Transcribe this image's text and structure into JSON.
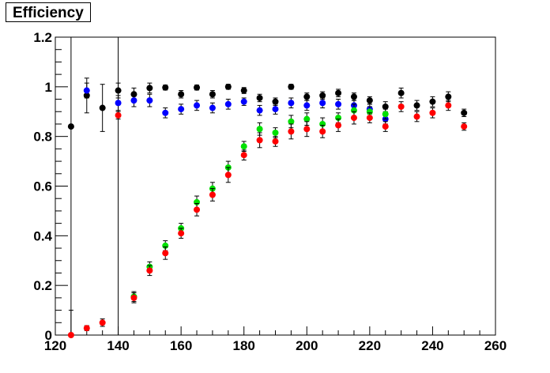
{
  "chart_data": {
    "type": "scatter",
    "title": "Efficiency",
    "xlabel": "",
    "ylabel": "",
    "xlim": [
      120,
      260
    ],
    "ylim": [
      0,
      1.2
    ],
    "xticks": [
      120,
      140,
      160,
      180,
      200,
      220,
      240,
      260
    ],
    "yticks": [
      0,
      0.2,
      0.4,
      0.6,
      0.8,
      1,
      1.2
    ],
    "xtick_labels": [
      "120",
      "140",
      "160",
      "180",
      "200",
      "220",
      "240",
      "260"
    ],
    "ytick_labels": [
      "0",
      "0.2",
      "0.4",
      "0.6",
      "0.8",
      "1",
      "1.2"
    ],
    "vlines": [
      125,
      140
    ],
    "grid": false,
    "series": [
      {
        "color": "#000000",
        "x": [
          125,
          130,
          135,
          140,
          145,
          150,
          155,
          160,
          165,
          170,
          175,
          180,
          185,
          190,
          195,
          200,
          205,
          210,
          215,
          220,
          225,
          230,
          235,
          240,
          245,
          250
        ],
        "y": [
          0.84,
          0.965,
          0.915,
          0.985,
          0.97,
          0.995,
          0.997,
          0.97,
          0.997,
          0.97,
          1.0,
          0.985,
          0.955,
          0.94,
          1.0,
          0.96,
          0.965,
          0.975,
          0.96,
          0.945,
          0.92,
          0.975,
          0.925,
          0.94,
          0.96,
          0.895
        ],
        "yerr": [
          0.0,
          0.07,
          0.095,
          0.03,
          0.025,
          0.02,
          0.01,
          0.015,
          0.01,
          0.015,
          0.01,
          0.012,
          0.015,
          0.015,
          0.01,
          0.015,
          0.015,
          0.015,
          0.015,
          0.015,
          0.02,
          0.02,
          0.02,
          0.02,
          0.02,
          0.015
        ]
      },
      {
        "color": "#0000ff",
        "x": [
          130,
          140,
          145,
          150,
          155,
          160,
          165,
          170,
          175,
          180,
          185,
          190,
          195,
          200,
          205,
          210,
          215,
          220,
          225
        ],
        "y": [
          0.985,
          0.935,
          0.945,
          0.945,
          0.895,
          0.91,
          0.925,
          0.915,
          0.93,
          0.94,
          0.905,
          0.91,
          0.935,
          0.925,
          0.935,
          0.93,
          0.925,
          0.91,
          0.87
        ],
        "yerr": [
          0.03,
          0.03,
          0.025,
          0.025,
          0.02,
          0.02,
          0.02,
          0.02,
          0.02,
          0.015,
          0.02,
          0.02,
          0.02,
          0.02,
          0.02,
          0.02,
          0.02,
          0.02,
          0.02
        ]
      },
      {
        "color": "#00e000",
        "x": [
          145,
          150,
          155,
          160,
          165,
          170,
          175,
          180,
          185,
          190,
          195,
          200,
          205,
          210,
          215,
          220,
          225
        ],
        "y": [
          0.155,
          0.275,
          0.36,
          0.43,
          0.535,
          0.59,
          0.675,
          0.76,
          0.83,
          0.815,
          0.86,
          0.87,
          0.85,
          0.875,
          0.905,
          0.9,
          0.89
        ],
        "yerr": [
          0.02,
          0.02,
          0.02,
          0.02,
          0.025,
          0.025,
          0.025,
          0.02,
          0.025,
          0.02,
          0.025,
          0.025,
          0.025,
          0.02,
          0.025,
          0.02,
          0.02
        ]
      },
      {
        "color": "#ff0000",
        "x": [
          125,
          130,
          135,
          140,
          145,
          150,
          155,
          160,
          165,
          170,
          175,
          180,
          185,
          190,
          195,
          200,
          205,
          210,
          215,
          220,
          225,
          230,
          235,
          240,
          245,
          250
        ],
        "y": [
          0.0,
          0.028,
          0.05,
          0.885,
          0.15,
          0.26,
          0.33,
          0.41,
          0.505,
          0.565,
          0.645,
          0.725,
          0.785,
          0.78,
          0.82,
          0.83,
          0.82,
          0.845,
          0.875,
          0.875,
          0.84,
          0.92,
          0.88,
          0.895,
          0.925,
          0.84
        ],
        "yerr": [
          0.1,
          0.01,
          0.015,
          0.015,
          0.02,
          0.02,
          0.025,
          0.02,
          0.025,
          0.025,
          0.03,
          0.02,
          0.03,
          0.02,
          0.03,
          0.03,
          0.025,
          0.025,
          0.025,
          0.02,
          0.02,
          0.02,
          0.02,
          0.02,
          0.02,
          0.015
        ]
      }
    ]
  }
}
